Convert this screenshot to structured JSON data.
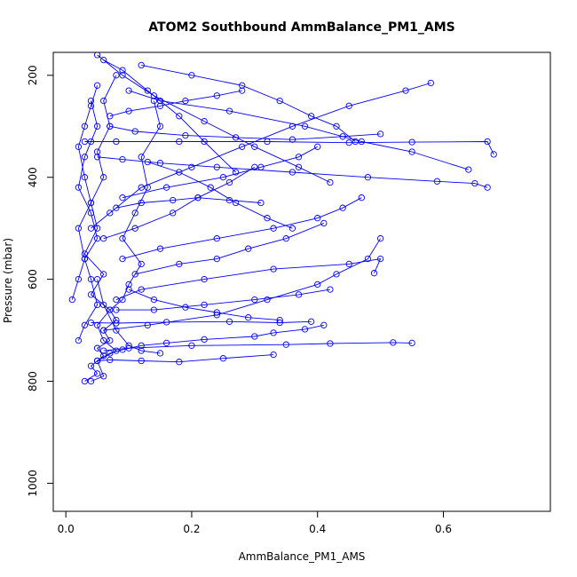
{
  "chart_data": {
    "type": "line",
    "title": "ATOM2 Southbound AmmBalance_PM1_AMS",
    "xlabel": "AmmBalance_PM1_AMS",
    "ylabel": "Pressure (mbar)",
    "xlim": [
      -0.02,
      0.77
    ],
    "ylim": [
      155,
      1055
    ],
    "y_reversed": true,
    "x_ticks": [
      0.0,
      0.2,
      0.4,
      0.6
    ],
    "x_tick_labels": [
      "0.0",
      "0.2",
      "0.4",
      "0.6"
    ],
    "y_ticks": [
      200,
      400,
      600,
      800,
      1000
    ],
    "y_tick_labels": [
      "200",
      "400",
      "600",
      "800",
      "1000"
    ],
    "grid": false,
    "marker": "open-circle",
    "color": "#0000ff",
    "series": [
      {
        "x": [
          0.03,
          0.05,
          0.04,
          0.06,
          0.05,
          0.07,
          0.06,
          0.08,
          0.07,
          0.09,
          0.1,
          0.12,
          0.09,
          0.11,
          0.13,
          0.12,
          0.15,
          0.14
        ],
        "y": [
          800,
          785,
          770,
          750,
          735,
          720,
          700,
          680,
          660,
          640,
          610,
          570,
          520,
          470,
          420,
          360,
          300,
          250
        ]
      },
      {
        "x": [
          0.04,
          0.06,
          0.05,
          0.08,
          0.06,
          0.05,
          0.07,
          0.04,
          0.06,
          0.03,
          0.05,
          0.04,
          0.06,
          0.05,
          0.07,
          0.06,
          0.08
        ],
        "y": [
          800,
          790,
          760,
          740,
          720,
          690,
          660,
          630,
          590,
          550,
          500,
          450,
          400,
          350,
          300,
          250,
          200
        ]
      },
      {
        "x": [
          0.05,
          0.07,
          0.09,
          0.12,
          0.16,
          0.22,
          0.3,
          0.33,
          0.38,
          0.41
        ],
        "y": [
          760,
          745,
          738,
          730,
          725,
          718,
          712,
          705,
          698,
          690
        ]
      },
      {
        "x": [
          0.06,
          0.1,
          0.2,
          0.35,
          0.42,
          0.52,
          0.55
        ],
        "y": [
          740,
          735,
          730,
          728,
          726,
          724,
          725
        ]
      },
      {
        "x": [
          0.03,
          0.04,
          0.08,
          0.18,
          0.32,
          0.45,
          0.55,
          0.67,
          0.68
        ],
        "y": [
          330,
          330,
          330,
          330,
          330,
          332,
          331,
          330,
          355
        ]
      },
      {
        "x": [
          0.05,
          0.09,
          0.15,
          0.24,
          0.36,
          0.48,
          0.59,
          0.65,
          0.67
        ],
        "y": [
          360,
          365,
          372,
          380,
          390,
          400,
          408,
          412,
          420
        ]
      },
      {
        "x": [
          0.08,
          0.12,
          0.22,
          0.33,
          0.45,
          0.5,
          0.49
        ],
        "y": [
          640,
          620,
          600,
          580,
          570,
          560,
          588
        ]
      },
      {
        "x": [
          0.06,
          0.13,
          0.24,
          0.32,
          0.4,
          0.43,
          0.48,
          0.5
        ],
        "y": [
          700,
          690,
          670,
          640,
          610,
          590,
          560,
          520
        ]
      },
      {
        "x": [
          0.04,
          0.07,
          0.12,
          0.2,
          0.28,
          0.36,
          0.45,
          0.54,
          0.58
        ],
        "y": [
          500,
          470,
          420,
          380,
          340,
          300,
          260,
          230,
          215
        ]
      },
      {
        "x": [
          0.07,
          0.11,
          0.19,
          0.27,
          0.36,
          0.44,
          0.5
        ],
        "y": [
          300,
          310,
          318,
          322,
          326,
          320,
          315
        ]
      },
      {
        "x": [
          0.1,
          0.15,
          0.26,
          0.38,
          0.47,
          0.55,
          0.64
        ],
        "y": [
          230,
          250,
          270,
          300,
          330,
          350,
          385
        ]
      },
      {
        "x": [
          0.05,
          0.09,
          0.14,
          0.22,
          0.3,
          0.37,
          0.42
        ],
        "y": [
          160,
          200,
          240,
          290,
          340,
          380,
          410
        ]
      },
      {
        "x": [
          0.12,
          0.2,
          0.28,
          0.34,
          0.39,
          0.43,
          0.46
        ],
        "y": [
          180,
          200,
          220,
          250,
          280,
          300,
          330
        ]
      },
      {
        "x": [
          0.09,
          0.15,
          0.24,
          0.33,
          0.4,
          0.44,
          0.47
        ],
        "y": [
          560,
          540,
          520,
          500,
          480,
          460,
          440
        ]
      },
      {
        "x": [
          0.08,
          0.14,
          0.22,
          0.3,
          0.37,
          0.42
        ],
        "y": [
          660,
          660,
          650,
          640,
          630,
          620
        ]
      },
      {
        "x": [
          0.04,
          0.08,
          0.16,
          0.26,
          0.34,
          0.39
        ],
        "y": [
          685,
          686,
          684,
          683,
          685,
          683
        ]
      },
      {
        "x": [
          0.05,
          0.07,
          0.12,
          0.18,
          0.25,
          0.33
        ],
        "y": [
          760,
          758,
          760,
          762,
          755,
          748
        ]
      },
      {
        "x": [
          0.02,
          0.03,
          0.05,
          0.04,
          0.03,
          0.05,
          0.04,
          0.02,
          0.03,
          0.05,
          0.04
        ],
        "y": [
          720,
          690,
          650,
          600,
          560,
          520,
          470,
          420,
          360,
          300,
          250
        ]
      },
      {
        "x": [
          0.01,
          0.02,
          0.03,
          0.02,
          0.04,
          0.03,
          0.02,
          0.03,
          0.04,
          0.05
        ],
        "y": [
          640,
          600,
          560,
          500,
          450,
          400,
          340,
          300,
          260,
          220
        ]
      },
      {
        "x": [
          0.09,
          0.16,
          0.25,
          0.31,
          0.37,
          0.4
        ],
        "y": [
          440,
          420,
          400,
          380,
          360,
          340
        ]
      },
      {
        "x": [
          0.11,
          0.18,
          0.24,
          0.29,
          0.35,
          0.41
        ],
        "y": [
          590,
          570,
          560,
          540,
          520,
          490
        ]
      },
      {
        "x": [
          0.06,
          0.11,
          0.17,
          0.21,
          0.26,
          0.3
        ],
        "y": [
          520,
          500,
          470,
          440,
          410,
          380
        ]
      },
      {
        "x": [
          0.07,
          0.1,
          0.15,
          0.19,
          0.24,
          0.28
        ],
        "y": [
          280,
          270,
          260,
          250,
          240,
          230
        ]
      },
      {
        "x": [
          0.13,
          0.18,
          0.23,
          0.27,
          0.32,
          0.36
        ],
        "y": [
          370,
          390,
          420,
          450,
          480,
          500
        ]
      },
      {
        "x": [
          0.05,
          0.06,
          0.08,
          0.1,
          0.12,
          0.15
        ],
        "y": [
          600,
          650,
          700,
          730,
          740,
          745
        ]
      },
      {
        "x": [
          0.06,
          0.09,
          0.13,
          0.18,
          0.22,
          0.27
        ],
        "y": [
          170,
          190,
          230,
          280,
          330,
          390
        ]
      },
      {
        "x": [
          0.1,
          0.14,
          0.19,
          0.24,
          0.29,
          0.34
        ],
        "y": [
          620,
          640,
          655,
          665,
          675,
          680
        ]
      },
      {
        "x": [
          0.08,
          0.12,
          0.17,
          0.21,
          0.26,
          0.31
        ],
        "y": [
          460,
          450,
          445,
          440,
          445,
          450
        ]
      }
    ]
  }
}
